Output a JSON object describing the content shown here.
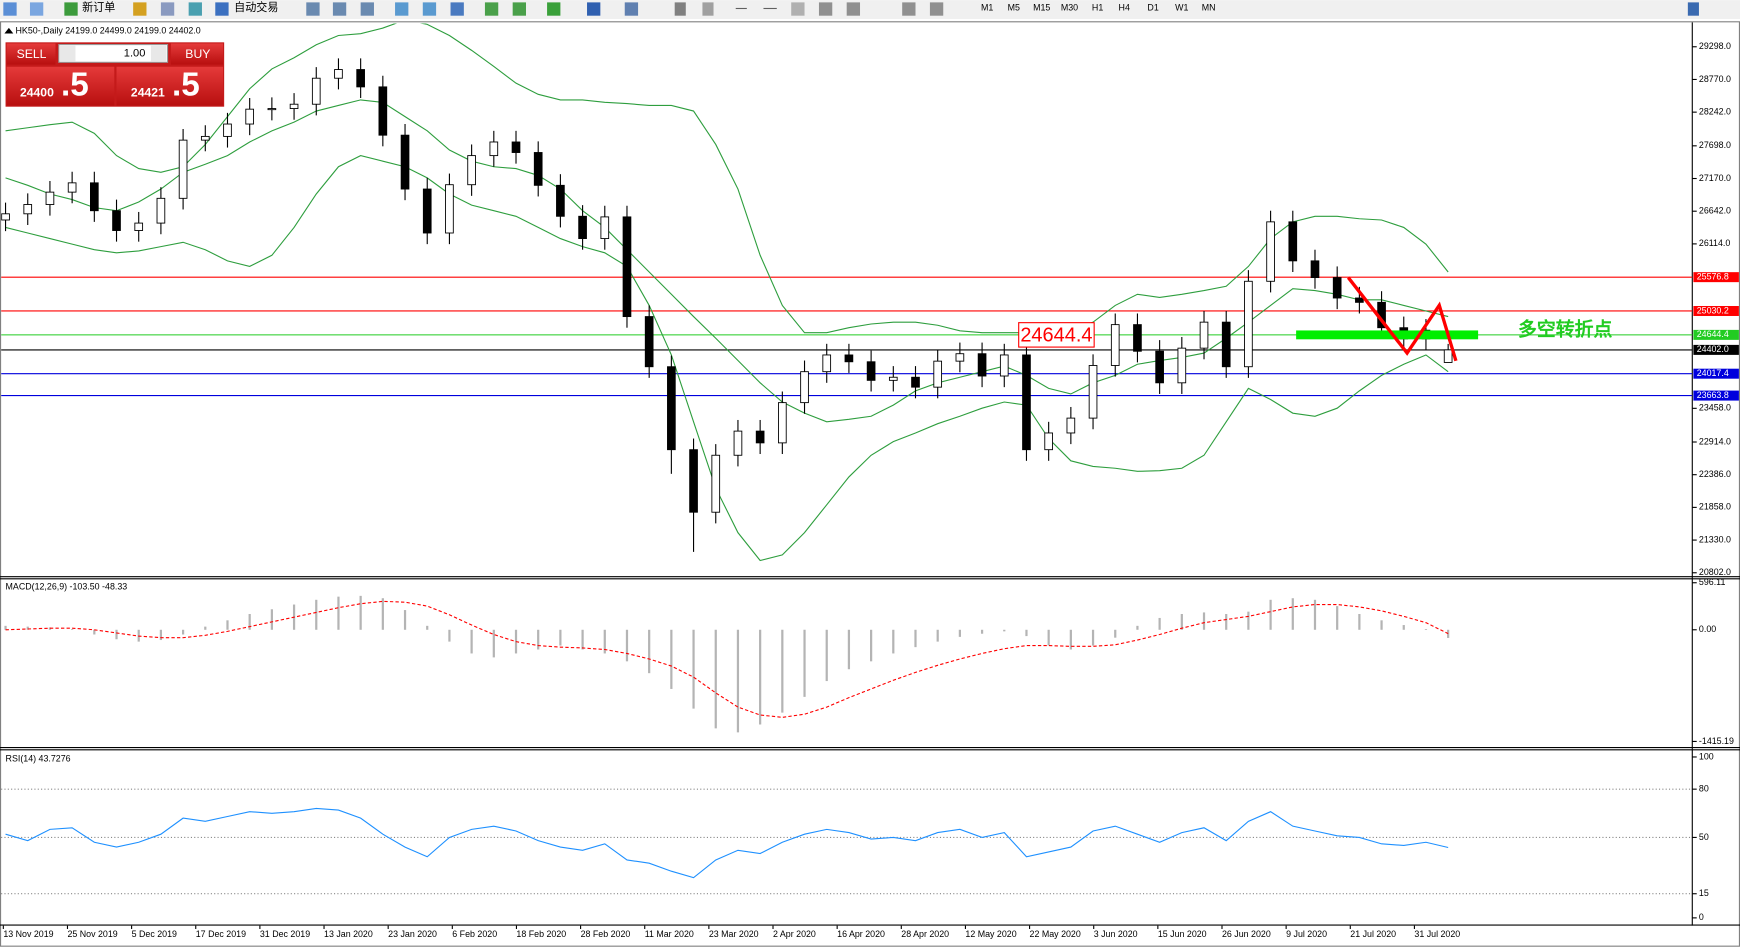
{
  "toolbar": {
    "buttons": [
      "新订单",
      "自动交易"
    ],
    "timeframes": [
      "M1",
      "M5",
      "M15",
      "M30",
      "H1",
      "H4",
      "D1",
      "W1",
      "MN"
    ]
  },
  "trade_panel": {
    "sell": "SELL",
    "buy": "BUY",
    "lots": "1.00",
    "bid": "24400",
    "bid_pips": ".5",
    "ask": "24421",
    "ask_pips": ".5"
  },
  "chart_data": [
    {
      "type": "candlestick",
      "title": "HK50-,Daily  24199.0 24499.0 24199.0 24402.0",
      "open": [
        26500,
        26600,
        26750,
        26950,
        27100,
        26650,
        26330,
        26450,
        26850,
        27790,
        27850,
        28050,
        28290,
        28300,
        28370,
        28790,
        28930,
        28650,
        27870,
        27000,
        26290,
        27070,
        27540,
        27760,
        27590,
        27060,
        26560,
        26200,
        26550,
        24940,
        24130,
        22790,
        21780,
        22700,
        23090,
        22900,
        23550,
        24050,
        24320,
        24210,
        23910,
        23960,
        23800,
        24220,
        24340,
        23980,
        24320,
        22790,
        23060,
        23300,
        24150,
        24810,
        24380,
        23870,
        24430,
        24850,
        24130,
        25510,
        26470,
        25840,
        25570,
        25240,
        25170,
        24760,
        24580,
        24199
      ],
      "high": [
        26780,
        26930,
        27130,
        27280,
        27280,
        26830,
        26630,
        27030,
        27970,
        28030,
        28230,
        28470,
        28480,
        28550,
        28970,
        29110,
        29110,
        28830,
        28050,
        27180,
        27250,
        27720,
        27940,
        27940,
        27770,
        27240,
        26740,
        26730,
        26730,
        25120,
        24310,
        22970,
        22880,
        23270,
        23270,
        23730,
        24230,
        24500,
        24500,
        24390,
        24140,
        24140,
        24400,
        24520,
        24520,
        24500,
        24500,
        23240,
        23480,
        24330,
        24990,
        24990,
        24560,
        24610,
        25030,
        25030,
        25690,
        26650,
        26650,
        26020,
        25750,
        25420,
        25350,
        24940,
        24900,
        24499
      ],
      "low": [
        26320,
        26420,
        26570,
        26770,
        26470,
        26150,
        26150,
        26270,
        26670,
        27610,
        27670,
        27870,
        28110,
        28120,
        28190,
        28610,
        28470,
        27690,
        26820,
        26110,
        26110,
        26890,
        27360,
        27410,
        26880,
        26380,
        26020,
        26020,
        24760,
        23950,
        22400,
        21140,
        21600,
        22520,
        22720,
        22720,
        23370,
        23870,
        24030,
        23730,
        23730,
        23620,
        23620,
        24040,
        23800,
        23800,
        22610,
        22610,
        22880,
        23120,
        23970,
        24200,
        23690,
        23690,
        24250,
        23950,
        23950,
        25330,
        25660,
        25390,
        25060,
        24990,
        24580,
        24400,
        24400,
        24199
      ],
      "close": [
        26600,
        26750,
        26950,
        27100,
        26650,
        26330,
        26450,
        26850,
        27790,
        27850,
        28050,
        28290,
        28300,
        28370,
        28790,
        28930,
        28650,
        27870,
        27000,
        26290,
        27070,
        27540,
        27760,
        27590,
        27060,
        26560,
        26200,
        26550,
        24940,
        24130,
        22790,
        21780,
        22700,
        23090,
        22900,
        23550,
        24050,
        24320,
        24210,
        23910,
        23960,
        23800,
        24220,
        24340,
        23980,
        24320,
        22790,
        23060,
        23300,
        24150,
        24810,
        24380,
        23870,
        24430,
        24850,
        24130,
        25510,
        26470,
        25840,
        25570,
        25240,
        25170,
        24760,
        24580,
        24720,
        24402
      ],
      "color_up": "#ffffff",
      "color_down": "#000000",
      "bands": {
        "color": "#2e9e3e",
        "upper": [
          27940,
          27990,
          28040,
          28080,
          27900,
          27540,
          27330,
          27270,
          27360,
          27720,
          28170,
          28620,
          28940,
          29120,
          29330,
          29480,
          29510,
          29600,
          29730,
          29660,
          29480,
          29240,
          28980,
          28710,
          28530,
          28440,
          28440,
          28400,
          28380,
          28350,
          28350,
          28260,
          27720,
          27000,
          25930,
          25120,
          24680,
          24680,
          24760,
          24820,
          24850,
          24850,
          24800,
          24710,
          24680,
          24680,
          24680,
          24680,
          24710,
          24850,
          25120,
          25300,
          25250,
          25300,
          25360,
          25430,
          25750,
          26200,
          26470,
          26560,
          26560,
          26520,
          26500,
          26380,
          26110,
          25660
        ],
        "middle": [
          27180,
          27060,
          26920,
          26830,
          26700,
          26650,
          26790,
          27000,
          27270,
          27400,
          27540,
          27760,
          27940,
          28080,
          28260,
          28350,
          28440,
          28400,
          28170,
          27940,
          27630,
          27450,
          27360,
          27330,
          27220,
          27000,
          26650,
          26380,
          26020,
          25660,
          25300,
          24940,
          24590,
          24230,
          23870,
          23560,
          23380,
          23240,
          23280,
          23330,
          23510,
          23740,
          23870,
          23960,
          24050,
          24140,
          23990,
          23780,
          23690,
          23870,
          23990,
          24170,
          24230,
          24280,
          24350,
          24590,
          24850,
          25120,
          25390,
          25360,
          25300,
          25210,
          25210,
          25120,
          25030,
          24940
        ],
        "lower": [
          26380,
          26290,
          26200,
          26110,
          26020,
          25970,
          26000,
          26070,
          26140,
          26020,
          25840,
          25750,
          25930,
          26380,
          26920,
          27360,
          27540,
          27450,
          27360,
          27180,
          26920,
          26740,
          26650,
          26560,
          26380,
          26200,
          26070,
          25970,
          25750,
          25120,
          24320,
          23240,
          22170,
          21450,
          21000,
          21090,
          21450,
          21900,
          22350,
          22700,
          22920,
          23060,
          23210,
          23330,
          23460,
          23560,
          23510,
          22970,
          22610,
          22520,
          22490,
          22440,
          22450,
          22490,
          22700,
          23240,
          23780,
          23600,
          23380,
          23330,
          23460,
          23740,
          23990,
          24170,
          24320,
          24050
        ]
      },
      "ylim": [
        20802,
        29298
      ],
      "yticks": [
        {
          "value": 29298,
          "label": "29298.0"
        },
        {
          "value": 28770,
          "label": "28770.0"
        },
        {
          "value": 28242,
          "label": "28242.0"
        },
        {
          "value": 27698,
          "label": "27698.0"
        },
        {
          "value": 27170,
          "label": "27170.0"
        },
        {
          "value": 26642,
          "label": "26642.0"
        },
        {
          "value": 26114,
          "label": "26114.0"
        },
        {
          "value": 23458,
          "label": "23458.0"
        },
        {
          "value": 22914,
          "label": "22914.0"
        },
        {
          "value": 22386,
          "label": "22386.0"
        },
        {
          "value": 21858,
          "label": "21858.0"
        },
        {
          "value": 21330,
          "label": "21330.0"
        },
        {
          "value": 20802,
          "label": "20802.0"
        }
      ],
      "levels": [
        {
          "value": 25576.8,
          "color": "#ff0000"
        },
        {
          "value": 25030.2,
          "color": "#ff0000"
        },
        {
          "value": 24644.4,
          "color": "#22cc22"
        },
        {
          "value": 24402,
          "label": "24402.0",
          "color": "#000000"
        },
        {
          "value": 24017.4,
          "color": "#0000dd"
        },
        {
          "value": 23663.8,
          "color": "#0000dd"
        }
      ],
      "price_label": 24644.4,
      "note": "多空转折点",
      "dates": [
        "13 Nov 2019",
        "25 Nov 2019",
        "5 Dec 2019",
        "17 Dec 2019",
        "31 Dec 2019",
        "13 Jan 2020",
        "23 Jan 2020",
        "6 Feb 2020",
        "18 Feb 2020",
        "28 Feb 2020",
        "11 Mar 2020",
        "23 Mar 2020",
        "2 Apr 2020",
        "16 Apr 2020",
        "28 Apr 2020",
        "12 May 2020",
        "22 May 2020",
        "3 Jun 2020",
        "15 Jun 2020",
        "26 Jun 2020",
        "9 Jul 2020",
        "21 Jul 2020",
        "31 Jul 2020"
      ]
    },
    {
      "type": "macd",
      "title": "MACD(12,26,9) -103.50 -48.33",
      "histogram": {
        "color": "#b4b4b4",
        "values": [
          50,
          40,
          30,
          10,
          -60,
          -120,
          -150,
          -130,
          -60,
          40,
          120,
          200,
          260,
          320,
          380,
          420,
          430,
          400,
          250,
          50,
          -150,
          -300,
          -350,
          -300,
          -250,
          -200,
          -250,
          -300,
          -400,
          -550,
          -750,
          -1000,
          -1250,
          -1300,
          -1200,
          -1050,
          -850,
          -650,
          -500,
          -400,
          -300,
          -220,
          -150,
          -90,
          -50,
          -20,
          -80,
          -200,
          -250,
          -200,
          -100,
          50,
          150,
          200,
          220,
          200,
          230,
          380,
          400,
          380,
          300,
          200,
          120,
          60,
          10,
          -103.5
        ]
      },
      "signal": {
        "color": "#ff0000",
        "values": [
          0,
          10,
          20,
          20,
          0,
          -40,
          -80,
          -100,
          -100,
          -70,
          -20,
          40,
          100,
          160,
          220,
          280,
          330,
          360,
          350,
          300,
          190,
          60,
          -60,
          -150,
          -200,
          -220,
          -230,
          -250,
          -300,
          -370,
          -460,
          -600,
          -800,
          -980,
          -1080,
          -1110,
          -1070,
          -980,
          -860,
          -750,
          -640,
          -540,
          -450,
          -370,
          -300,
          -240,
          -200,
          -200,
          -210,
          -210,
          -190,
          -130,
          -60,
          20,
          90,
          130,
          170,
          230,
          290,
          320,
          320,
          290,
          240,
          170,
          90,
          -48.33
        ]
      },
      "ylim": [
        -1415.19,
        596.11
      ],
      "yticks": [
        596.11,
        {
          "value": 0,
          "label": "0.00"
        },
        -1415.19
      ]
    },
    {
      "type": "line",
      "title": "RSI(14) 43.7276",
      "color": "#1e90ff",
      "values": [
        52,
        48,
        55,
        56,
        47,
        44,
        47,
        52,
        62,
        60,
        63,
        66,
        65,
        66,
        68,
        67,
        62,
        52,
        44,
        38,
        50,
        55,
        57,
        54,
        48,
        44,
        42,
        46,
        36,
        34,
        29,
        25,
        36,
        42,
        40,
        47,
        52,
        55,
        53,
        49,
        50,
        48,
        53,
        55,
        50,
        53,
        38,
        41,
        44,
        54,
        57,
        52,
        47,
        53,
        56,
        48,
        60,
        66,
        57,
        54,
        51,
        50,
        46,
        45,
        47,
        43.7276
      ],
      "ylim": [
        0,
        100
      ],
      "yticks": [
        100,
        80,
        50,
        15,
        0
      ]
    }
  ]
}
